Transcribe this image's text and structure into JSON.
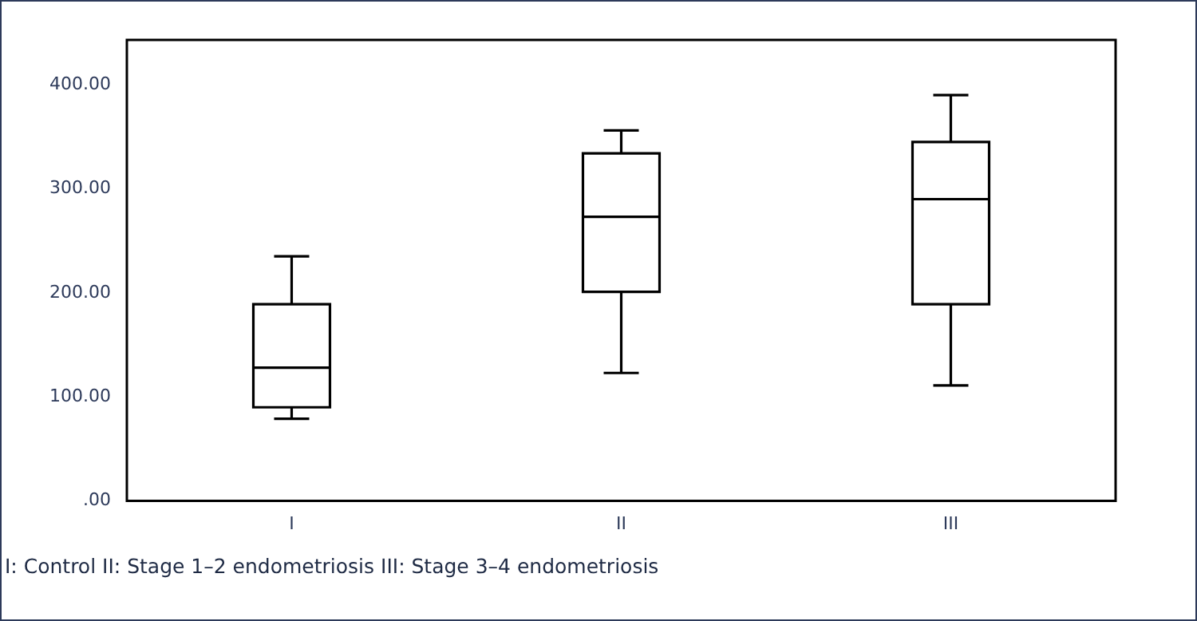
{
  "chart_data": {
    "type": "box",
    "categories": [
      "I",
      "II",
      "III"
    ],
    "boxes": [
      {
        "low": 79,
        "q1": 90,
        "median": 128,
        "q3": 189,
        "high": 235
      },
      {
        "low": 123,
        "q1": 201,
        "median": 273,
        "q3": 334,
        "high": 356
      },
      {
        "low": 111,
        "q1": 189,
        "median": 290,
        "q3": 345,
        "high": 390
      }
    ],
    "color": "#000000",
    "ylim": [
      0,
      443
    ],
    "yticks": [
      {
        "value": 0,
        "label": ".00"
      },
      {
        "value": 100,
        "label": "100.00"
      },
      {
        "value": 200,
        "label": "200.00"
      },
      {
        "value": 300,
        "label": "300.00"
      },
      {
        "value": 400,
        "label": "400.00"
      }
    ],
    "grid": false,
    "legend": false,
    "annotations": [
      "I: Control II: Stage 1–2 endometriosis III: Stage 3–4 endometriosis"
    ]
  }
}
